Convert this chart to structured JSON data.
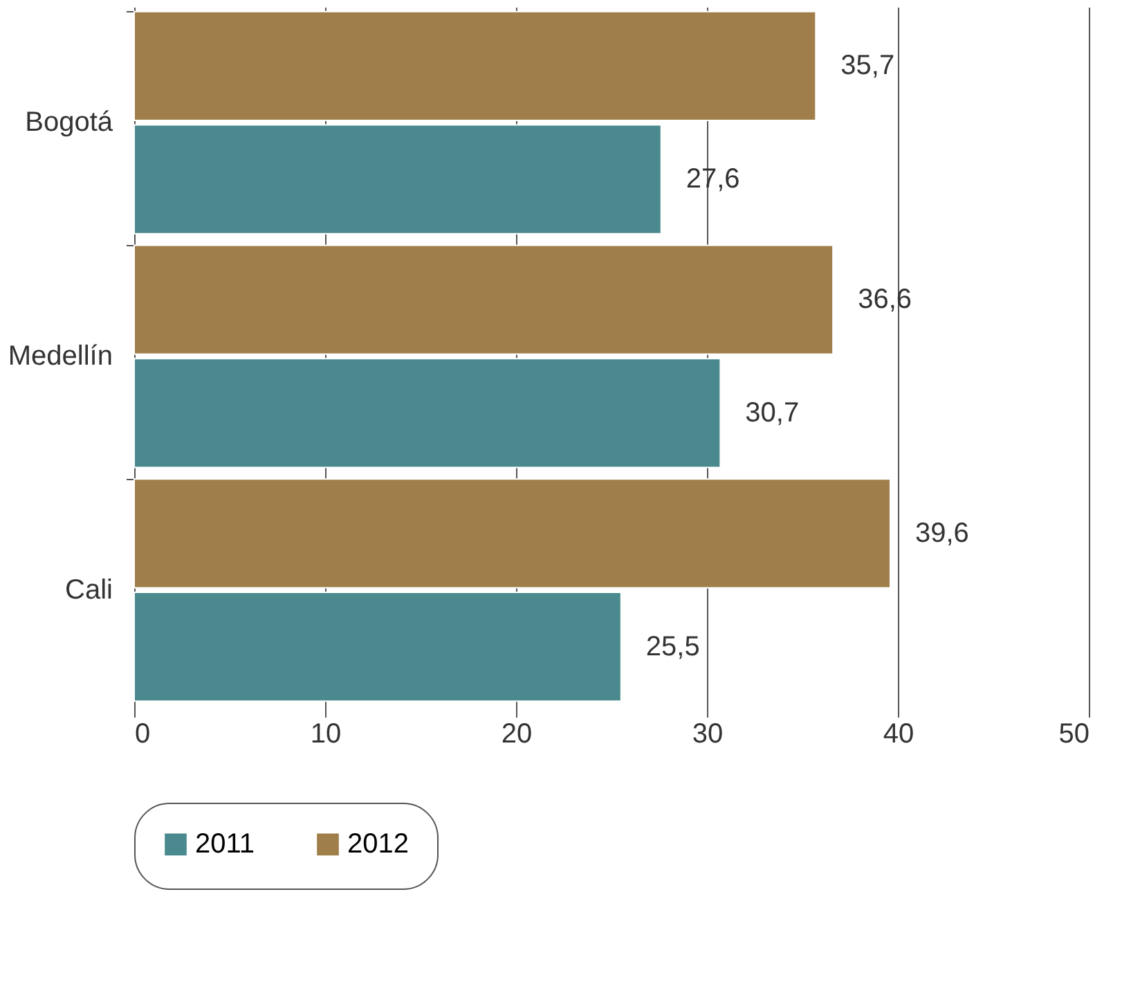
{
  "chart_data": {
    "type": "bar",
    "orientation": "horizontal",
    "categories": [
      "Bogotá",
      "Medellín",
      "Cali"
    ],
    "series": [
      {
        "name": "2011",
        "color": "#4a8a8e",
        "values": [
          27.6,
          30.7,
          25.5
        ],
        "value_labels": [
          "27,6",
          "30,7",
          "25,5"
        ]
      },
      {
        "name": "2012",
        "color": "#a07e4a",
        "values": [
          35.7,
          36.6,
          39.6
        ],
        "value_labels": [
          "35,7",
          "36,6",
          "39,6"
        ]
      }
    ],
    "xlim": [
      0,
      50
    ],
    "xticks": [
      0,
      10,
      20,
      30,
      40,
      50
    ],
    "grid": "x",
    "legend": "bottom"
  }
}
